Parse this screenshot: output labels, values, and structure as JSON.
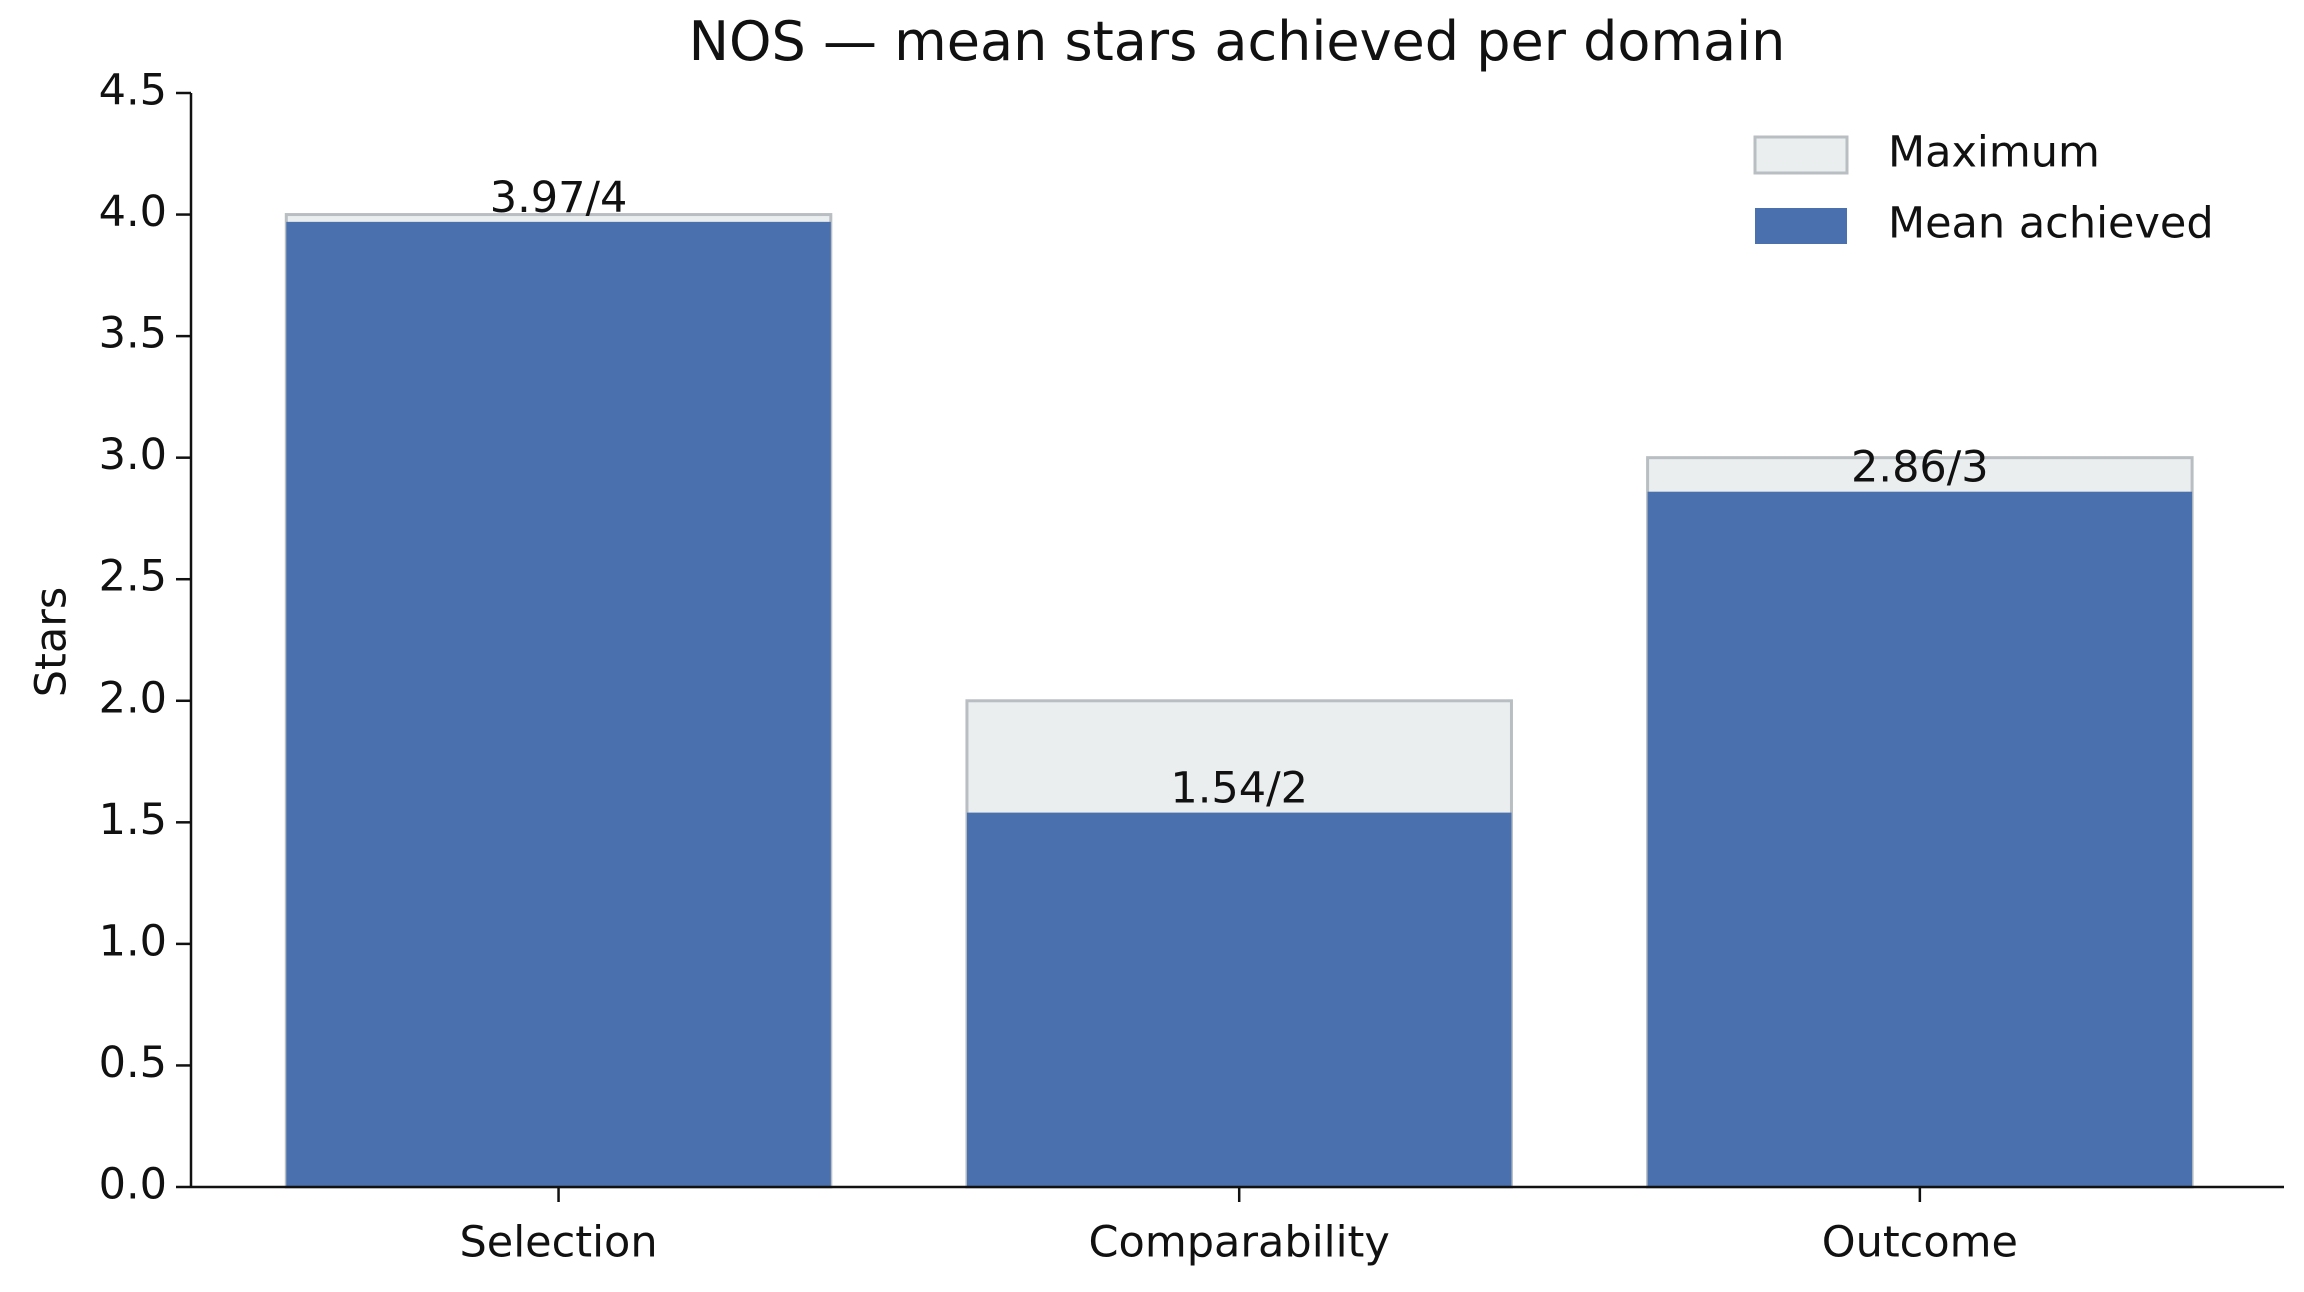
{
  "chart_data": {
    "type": "bar",
    "title": "NOS — mean stars achieved per domain",
    "y_label": "Stars",
    "categories": [
      "Selection",
      "Comparability",
      "Outcome"
    ],
    "series": [
      {
        "name": "Maximum",
        "color": "#eaeeef",
        "values": [
          4,
          2,
          3
        ]
      },
      {
        "name": "Mean achieved",
        "color": "#4a70ad",
        "values": [
          3.97,
          1.54,
          2.86
        ],
        "value_labels": [
          "3.97/4",
          "1.54/2",
          "2.86/3"
        ]
      }
    ],
    "ylim": [
      0,
      4.5
    ],
    "yticks": [
      {
        "value": 0,
        "label": "0.0"
      },
      0.5,
      {
        "value": 1,
        "label": "1.0"
      },
      1.5,
      {
        "value": 2,
        "label": "2.0"
      },
      2.5,
      {
        "value": 3,
        "label": "3.0"
      },
      3.5,
      {
        "value": 4,
        "label": "4.0"
      },
      4.5
    ],
    "grid": false,
    "legend": "upper right"
  }
}
